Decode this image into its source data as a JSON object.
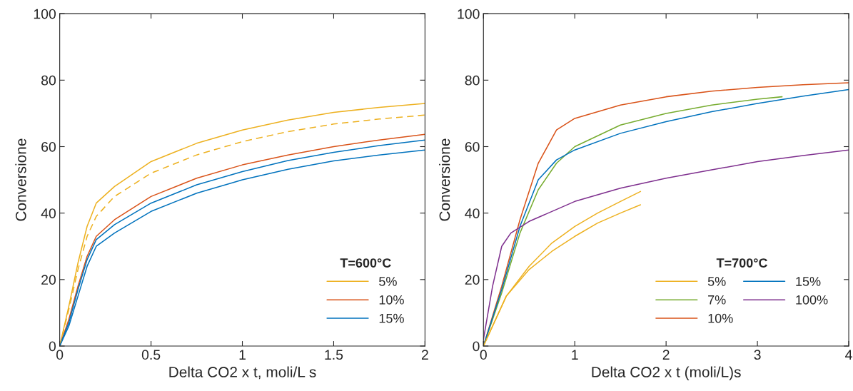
{
  "chart_data": [
    {
      "type": "line",
      "xlabel": "Delta CO2 x t, moli/L s",
      "ylabel": "Conversione",
      "legend_title": "T=600°C",
      "legend": "bottom right",
      "grid": false,
      "xlim": [
        0,
        2
      ],
      "xticks": [
        0,
        0.5,
        1,
        1.5,
        2
      ],
      "ylim": [
        0,
        100
      ],
      "yticks": [
        0,
        20,
        40,
        60,
        80,
        100
      ],
      "series": [
        {
          "name": "5%",
          "color": "#edb120",
          "line_style": "solid",
          "x": [
            0,
            0.05,
            0.1,
            0.15,
            0.2,
            0.3,
            0.5,
            0.75,
            1,
            1.25,
            1.5,
            1.75,
            2
          ],
          "values": [
            0,
            12,
            25,
            36,
            43,
            48,
            55.5,
            61,
            65,
            68,
            70.3,
            71.8,
            73
          ]
        },
        {
          "name": "10%",
          "color": "#d95319",
          "line_style": "solid",
          "x": [
            0,
            0.05,
            0.1,
            0.15,
            0.2,
            0.3,
            0.5,
            0.75,
            1,
            1.25,
            1.5,
            1.75,
            2
          ],
          "values": [
            0,
            8,
            18,
            27,
            33,
            38,
            45,
            50.5,
            54.5,
            57.5,
            60,
            62,
            63.7
          ]
        },
        {
          "name": "15%",
          "color": "#0072bd",
          "line_style": "solid",
          "x": [
            0,
            0.05,
            0.1,
            0.15,
            0.2,
            0.3,
            0.5,
            0.75,
            1,
            1.25,
            1.5,
            1.75,
            2
          ],
          "values": [
            0,
            7,
            17,
            26,
            32,
            36.5,
            43,
            48.5,
            52.5,
            55.8,
            58.3,
            60.3,
            62
          ]
        },
        {
          "color": "#edb120",
          "line_style": "dashed",
          "x": [
            0,
            0.05,
            0.1,
            0.15,
            0.2,
            0.3,
            0.5,
            0.75,
            1,
            1.25,
            1.5,
            1.75,
            2
          ],
          "values": [
            0,
            11,
            23,
            33,
            39,
            45,
            52,
            57.5,
            61.5,
            64.5,
            66.8,
            68.3,
            69.5
          ]
        },
        {
          "color": "#0072bd",
          "line_style": "solid",
          "x": [
            0,
            0.05,
            0.1,
            0.15,
            0.2,
            0.3,
            0.5,
            0.75,
            1,
            1.25,
            1.5,
            1.75,
            2
          ],
          "values": [
            0,
            6,
            15,
            24,
            30,
            34,
            40.5,
            46,
            50,
            53.2,
            55.7,
            57.5,
            59
          ]
        }
      ]
    },
    {
      "type": "line",
      "xlabel": "Delta CO2 x t (moli/L)s",
      "ylabel": "Conversione",
      "legend_title": "T=700°C",
      "legend": "bottom right",
      "grid": false,
      "xlim": [
        0,
        4
      ],
      "xticks": [
        0,
        1,
        2,
        3,
        4
      ],
      "ylim": [
        0,
        100
      ],
      "yticks": [
        0,
        20,
        40,
        60,
        80,
        100
      ],
      "series": [
        {
          "name": "5%",
          "color": "#edb120",
          "line_style": "solid",
          "x": [
            0,
            0.25,
            0.5,
            0.75,
            1,
            1.25,
            1.5,
            1.72
          ],
          "values": [
            0,
            15,
            24,
            31,
            36,
            40,
            43.5,
            46.5
          ]
        },
        {
          "name": "7%",
          "color": "#77ac30",
          "line_style": "solid",
          "x": [
            0,
            0.2,
            0.4,
            0.6,
            0.8,
            1,
            1.5,
            2,
            2.5,
            3,
            3.27
          ],
          "values": [
            0,
            16,
            34,
            47,
            55,
            60,
            66.5,
            70,
            72.5,
            74.3,
            75
          ]
        },
        {
          "name": "10%",
          "color": "#d95319",
          "line_style": "solid",
          "x": [
            0,
            0.2,
            0.4,
            0.6,
            0.8,
            1,
            1.5,
            2,
            2.5,
            3,
            3.5,
            4
          ],
          "values": [
            0,
            18,
            38,
            55,
            65,
            68.5,
            72.5,
            75,
            76.7,
            77.8,
            78.6,
            79.2
          ]
        },
        {
          "name": "15%",
          "color": "#0072bd",
          "line_style": "solid",
          "x": [
            0,
            0.2,
            0.4,
            0.6,
            0.8,
            1,
            1.5,
            2,
            2.5,
            3,
            3.5,
            4
          ],
          "values": [
            0,
            17,
            36,
            50,
            56,
            59,
            64,
            67.5,
            70.5,
            73,
            75.2,
            77.2
          ]
        },
        {
          "name": "100%",
          "color": "#7e2f8e",
          "line_style": "solid",
          "x": [
            0,
            0.1,
            0.2,
            0.3,
            0.5,
            1,
            1.5,
            2,
            2.5,
            3,
            3.5,
            4
          ],
          "values": [
            2,
            18,
            30,
            34,
            37.5,
            43.5,
            47.5,
            50.5,
            53,
            55.5,
            57.3,
            59
          ]
        },
        {
          "color": "#edb120",
          "line_style": "solid",
          "x": [
            0,
            0.25,
            0.5,
            0.75,
            1,
            1.25,
            1.5,
            1.72
          ],
          "values": [
            0,
            15,
            23,
            28.5,
            33,
            37,
            40,
            42.5
          ]
        }
      ]
    }
  ]
}
